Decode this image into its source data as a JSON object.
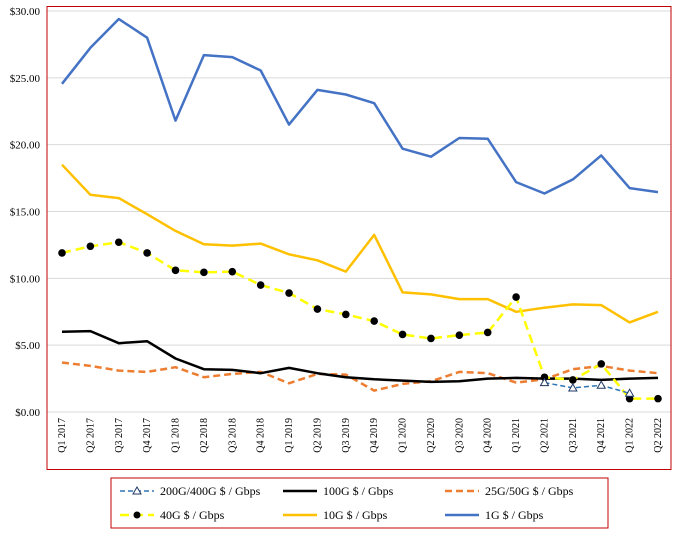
{
  "chart_data": {
    "type": "line",
    "title": "",
    "xlabel": "",
    "ylabel": "",
    "ylim": [
      0,
      30
    ],
    "y_ticks": [
      "$0.00",
      "$5.00",
      "$10.00",
      "$15.00",
      "$20.00",
      "$25.00",
      "$30.00"
    ],
    "grid": true,
    "legend_position": "bottom",
    "categories": [
      "Q1 2017",
      "Q2 2017",
      "Q3 2017",
      "Q4 2017",
      "Q1 2018",
      "Q2 2018",
      "Q3 2018",
      "Q4 2018",
      "Q1 2019",
      "Q2 2019",
      "Q3 2019",
      "Q4 2019",
      "Q1 2020",
      "Q2 2020",
      "Q3 2020",
      "Q4 2020",
      "Q1 2021",
      "Q2 2021",
      "Q3 2021",
      "Q4 2021",
      "Q1 2022",
      "Q2 2022"
    ],
    "series": [
      {
        "name": "200G/400G $ / Gbps",
        "color": "#2e75b6",
        "dash": "dashed",
        "marker": "triangle",
        "values": [
          null,
          null,
          null,
          null,
          null,
          null,
          null,
          null,
          null,
          null,
          null,
          null,
          null,
          null,
          null,
          null,
          null,
          2.2,
          1.8,
          2.0,
          1.4,
          null
        ]
      },
      {
        "name": "100G $ / Gbps",
        "color": "#000000",
        "dash": "solid",
        "marker": "none",
        "values": [
          6.0,
          6.05,
          5.15,
          5.3,
          4.0,
          3.2,
          3.15,
          2.9,
          3.3,
          2.9,
          2.6,
          2.45,
          2.35,
          2.25,
          2.3,
          2.5,
          2.55,
          2.5,
          2.5,
          2.4,
          2.5,
          2.55
        ]
      },
      {
        "name": "25G/50G $ / Gbps",
        "color": "#ed7d31",
        "dash": "dashed",
        "marker": "none",
        "values": [
          3.7,
          3.45,
          3.1,
          3.0,
          3.35,
          2.6,
          2.85,
          3.0,
          2.15,
          2.85,
          2.8,
          1.6,
          2.1,
          2.3,
          3.0,
          2.9,
          2.2,
          2.45,
          3.2,
          3.45,
          3.1,
          2.9
        ]
      },
      {
        "name": "40G $ / Gbps",
        "color": "#ffff00",
        "dash": "dashed",
        "marker": "circle",
        "values": [
          11.9,
          12.4,
          12.7,
          11.9,
          10.6,
          10.45,
          10.5,
          9.5,
          8.9,
          7.7,
          7.3,
          6.8,
          5.8,
          5.5,
          5.75,
          5.95,
          8.6,
          2.6,
          2.4,
          3.6,
          1.0,
          1.0
        ]
      },
      {
        "name": "10G $ / Gbps",
        "color": "#ffc000",
        "dash": "solid",
        "marker": "none",
        "values": [
          18.5,
          16.25,
          16.0,
          14.8,
          13.55,
          12.55,
          12.45,
          12.6,
          11.8,
          11.35,
          10.5,
          13.25,
          8.95,
          8.8,
          8.45,
          8.45,
          7.5,
          7.8,
          8.05,
          8.0,
          6.7,
          7.5
        ]
      },
      {
        "name": "1G $ / Gbps",
        "color": "#4472c4",
        "dash": "solid",
        "marker": "none",
        "values": [
          24.55,
          27.25,
          29.4,
          28.0,
          21.8,
          26.7,
          26.55,
          25.55,
          21.5,
          24.1,
          23.75,
          23.1,
          19.7,
          19.1,
          20.5,
          20.45,
          17.2,
          16.35,
          17.4,
          19.2,
          16.75,
          16.45
        ]
      }
    ]
  }
}
